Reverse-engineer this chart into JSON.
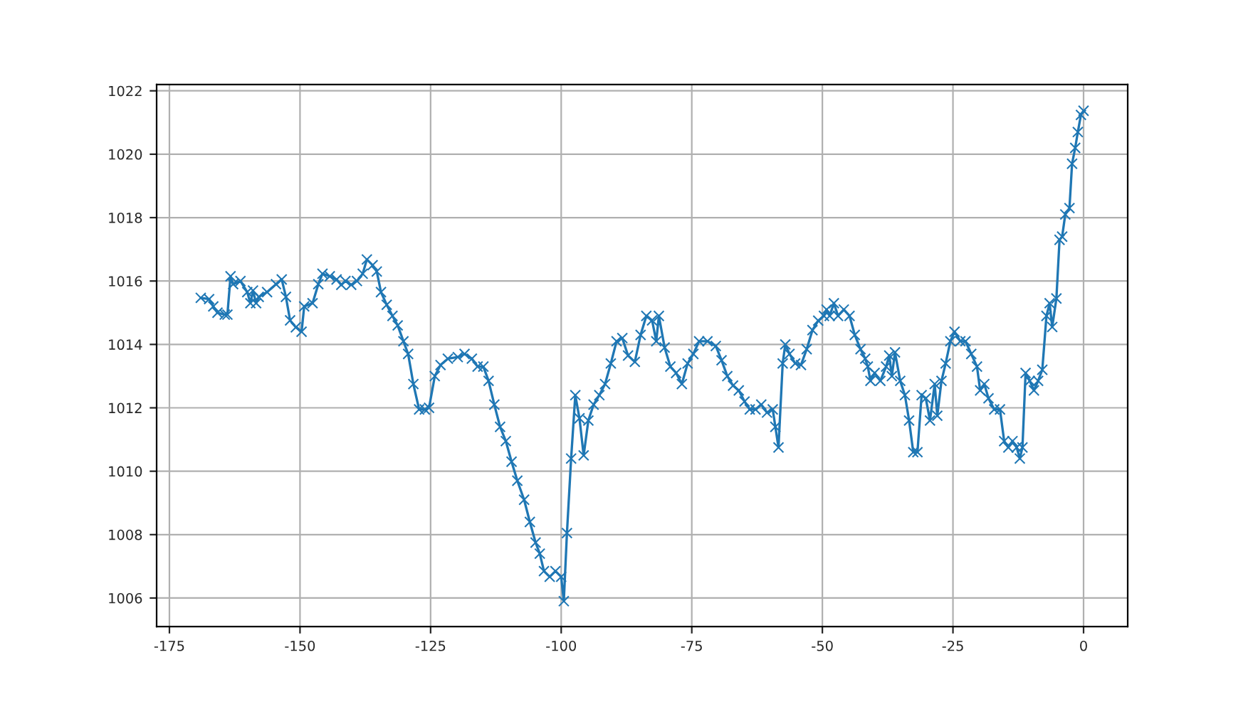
{
  "chart_data": {
    "type": "line",
    "marker": "cross",
    "line_style": "solid",
    "grid": true,
    "xlim": [
      -177.45,
      8.45
    ],
    "xticks": [
      -175,
      -150,
      -125,
      -100,
      -75,
      -50,
      -25,
      0
    ],
    "ylim": [
      1005.1,
      1022.2
    ],
    "yticks": [
      1006,
      1008,
      1010,
      1012,
      1014,
      1016,
      1018,
      1020,
      1022
    ],
    "series": [
      {
        "color": "#1f77b4",
        "x": [
          -169.0,
          -167.4,
          -166.6,
          -165.8,
          -164.4,
          -163.9,
          -163.3,
          -162.8,
          -161.4,
          -160.1,
          -159.5,
          -159.0,
          -158.4,
          -157.9,
          -156.3,
          -154.6,
          -153.5,
          -152.7,
          -151.9,
          -150.8,
          -149.7,
          -149.2,
          -147.6,
          -146.5,
          -145.7,
          -144.3,
          -143.0,
          -142.1,
          -141.3,
          -140.2,
          -139.1,
          -138.0,
          -137.2,
          -136.1,
          -135.3,
          -134.5,
          -133.4,
          -132.3,
          -131.3,
          -130.2,
          -129.3,
          -128.3,
          -127.2,
          -126.1,
          -125.3,
          -124.2,
          -123.1,
          -121.7,
          -119.8,
          -118.5,
          -117.1,
          -116.0,
          -114.9,
          -113.9,
          -112.8,
          -111.7,
          -110.6,
          -109.5,
          -108.4,
          -107.1,
          -106.0,
          -104.9,
          -104.1,
          -103.3,
          -102.2,
          -101.1,
          -100.0,
          -99.5,
          -98.9,
          -98.1,
          -97.3,
          -96.5,
          -95.7,
          -94.8,
          -93.8,
          -92.7,
          -91.6,
          -90.5,
          -89.4,
          -88.3,
          -87.2,
          -85.9,
          -84.8,
          -83.7,
          -82.6,
          -81.8,
          -81.3,
          -80.2,
          -79.1,
          -78.0,
          -76.9,
          -75.8,
          -74.7,
          -73.6,
          -72.0,
          -70.4,
          -69.3,
          -68.2,
          -67.1,
          -66.0,
          -64.9,
          -63.9,
          -62.8,
          -61.7,
          -60.6,
          -59.5,
          -59.0,
          -58.4,
          -57.6,
          -57.1,
          -56.3,
          -55.2,
          -54.1,
          -53.0,
          -51.9,
          -50.8,
          -49.7,
          -49.2,
          -48.6,
          -47.8,
          -47.0,
          -45.9,
          -44.8,
          -43.8,
          -42.7,
          -41.8,
          -41.3,
          -40.8,
          -40.0,
          -38.9,
          -37.8,
          -37.2,
          -36.7,
          -36.1,
          -35.1,
          -34.2,
          -33.4,
          -32.6,
          -31.8,
          -31.0,
          -30.2,
          -29.4,
          -28.5,
          -28.0,
          -27.2,
          -26.4,
          -25.5,
          -24.7,
          -23.6,
          -22.6,
          -21.5,
          -20.4,
          -19.8,
          -19.0,
          -18.2,
          -17.1,
          -16.0,
          -15.2,
          -14.4,
          -13.6,
          -12.8,
          -12.2,
          -11.7,
          -11.1,
          -10.3,
          -9.5,
          -8.7,
          -7.9,
          -7.1,
          -6.5,
          -6.0,
          -5.2,
          -4.6,
          -4.1,
          -3.5,
          -2.7,
          -2.2,
          -1.6,
          -1.1,
          -0.5,
          0.0
        ],
        "values": [
          1015.47,
          1015.43,
          1015.2,
          1015.0,
          1014.94,
          1014.94,
          1016.15,
          1015.9,
          1016.0,
          1015.65,
          1015.3,
          1015.7,
          1015.3,
          1015.5,
          1015.65,
          1015.9,
          1016.05,
          1015.5,
          1014.76,
          1014.54,
          1014.4,
          1015.2,
          1015.3,
          1015.9,
          1016.23,
          1016.15,
          1016.05,
          1015.88,
          1016.0,
          1015.88,
          1016.0,
          1016.23,
          1016.68,
          1016.5,
          1016.3,
          1015.65,
          1015.25,
          1014.9,
          1014.6,
          1014.1,
          1013.7,
          1012.75,
          1011.95,
          1011.95,
          1012.0,
          1013.0,
          1013.35,
          1013.55,
          1013.6,
          1013.7,
          1013.55,
          1013.3,
          1013.3,
          1012.85,
          1012.1,
          1011.4,
          1010.95,
          1010.3,
          1009.7,
          1009.1,
          1008.4,
          1007.75,
          1007.4,
          1006.85,
          1006.67,
          1006.85,
          1006.67,
          1005.9,
          1008.05,
          1010.4,
          1012.4,
          1011.67,
          1010.5,
          1011.6,
          1012.1,
          1012.4,
          1012.75,
          1013.4,
          1014.1,
          1014.2,
          1013.65,
          1013.45,
          1014.3,
          1014.9,
          1014.76,
          1014.1,
          1014.9,
          1013.9,
          1013.3,
          1013.1,
          1012.75,
          1013.4,
          1013.7,
          1014.1,
          1014.1,
          1013.95,
          1013.5,
          1013.0,
          1012.7,
          1012.55,
          1012.2,
          1011.95,
          1011.95,
          1012.1,
          1011.85,
          1011.95,
          1011.4,
          1010.75,
          1013.4,
          1014.0,
          1013.7,
          1013.4,
          1013.35,
          1013.85,
          1014.45,
          1014.75,
          1014.9,
          1015.1,
          1014.9,
          1015.3,
          1014.9,
          1015.1,
          1014.9,
          1014.3,
          1013.85,
          1013.55,
          1013.3,
          1012.85,
          1013.1,
          1012.85,
          1013.3,
          1013.65,
          1013.0,
          1013.75,
          1012.85,
          1012.4,
          1011.6,
          1010.6,
          1010.6,
          1012.4,
          1012.3,
          1011.6,
          1012.75,
          1011.75,
          1012.85,
          1013.4,
          1014.1,
          1014.4,
          1014.1,
          1014.1,
          1013.7,
          1013.3,
          1012.55,
          1012.75,
          1012.3,
          1011.95,
          1011.95,
          1010.95,
          1010.75,
          1010.95,
          1010.75,
          1010.4,
          1010.75,
          1013.1,
          1012.85,
          1012.55,
          1012.85,
          1013.2,
          1014.9,
          1015.3,
          1014.55,
          1015.45,
          1017.3,
          1017.4,
          1018.1,
          1018.3,
          1019.7,
          1020.2,
          1020.7,
          1021.24,
          1021.37
        ]
      }
    ]
  }
}
